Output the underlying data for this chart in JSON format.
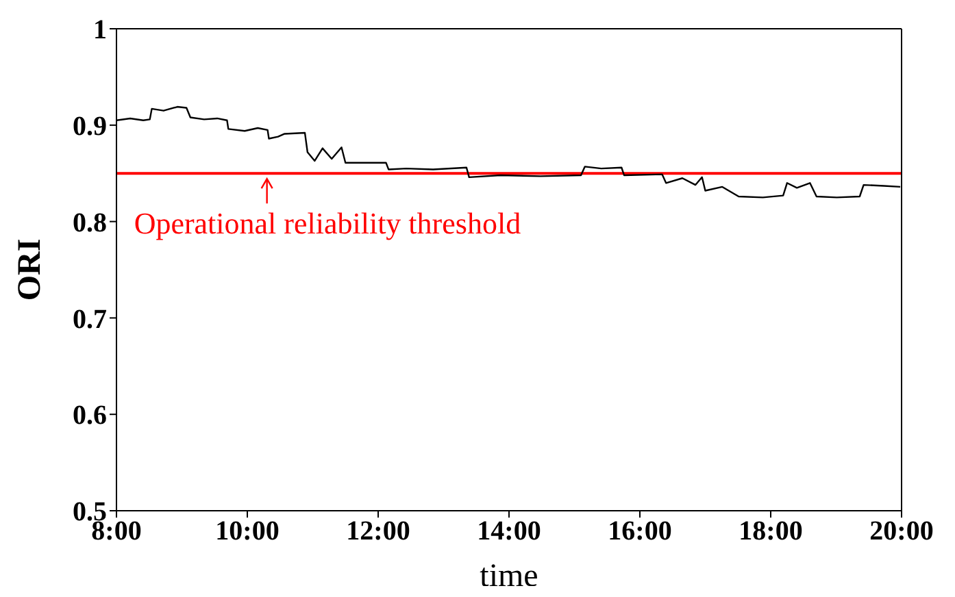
{
  "chart_data": {
    "type": "line",
    "xlabel": "time",
    "ylabel": "ORI",
    "x": [
      8.0,
      8.21,
      8.41,
      8.51,
      8.54,
      8.72,
      8.93,
      9.07,
      9.13,
      9.34,
      9.54,
      9.69,
      9.71,
      9.96,
      10.16,
      10.31,
      10.33,
      10.47,
      10.57,
      10.88,
      10.92,
      11.03,
      11.15,
      11.29,
      11.44,
      11.5,
      12.12,
      12.16,
      12.43,
      12.84,
      13.35,
      13.39,
      13.87,
      14.48,
      15.1,
      15.16,
      15.41,
      15.72,
      15.76,
      16.34,
      16.4,
      16.65,
      16.85,
      16.95,
      17.0,
      17.26,
      17.51,
      17.88,
      18.19,
      18.25,
      18.4,
      18.6,
      18.7,
      19.01,
      19.36,
      19.42,
      19.73,
      19.98
    ],
    "series": [
      {
        "color": "#000000",
        "values": [
          0.905,
          0.907,
          0.905,
          0.906,
          0.917,
          0.915,
          0.919,
          0.918,
          0.908,
          0.906,
          0.907,
          0.905,
          0.896,
          0.894,
          0.897,
          0.895,
          0.886,
          0.888,
          0.891,
          0.892,
          0.872,
          0.863,
          0.876,
          0.865,
          0.877,
          0.861,
          0.861,
          0.854,
          0.855,
          0.854,
          0.856,
          0.846,
          0.848,
          0.847,
          0.848,
          0.857,
          0.855,
          0.856,
          0.848,
          0.849,
          0.84,
          0.845,
          0.838,
          0.846,
          0.832,
          0.836,
          0.826,
          0.825,
          0.827,
          0.84,
          0.835,
          0.84,
          0.826,
          0.825,
          0.826,
          0.838,
          0.837,
          0.836
        ]
      }
    ],
    "xlim": [
      8,
      20
    ],
    "xticks": [
      {
        "value": 8,
        "label": "8:00"
      },
      {
        "value": 10,
        "label": "10:00"
      },
      {
        "value": 12,
        "label": "12:00"
      },
      {
        "value": 14,
        "label": "14:00"
      },
      {
        "value": 16,
        "label": "16:00"
      },
      {
        "value": 18,
        "label": "18:00"
      },
      {
        "value": 20,
        "label": "20:00"
      }
    ],
    "ylim": [
      0.5,
      1
    ],
    "yticks": [
      0.5,
      0.6,
      0.7,
      0.8,
      0.9,
      1
    ],
    "ref_lines": [
      {
        "axis": "y",
        "value": 0.85,
        "color": "#ff0000"
      }
    ],
    "annotations": [
      {
        "text": "Operational reliability threshold",
        "x": 10.3,
        "y": 0.85
      }
    ],
    "grid": false,
    "legend": false,
    "marker": "none",
    "line_style": "solid"
  }
}
